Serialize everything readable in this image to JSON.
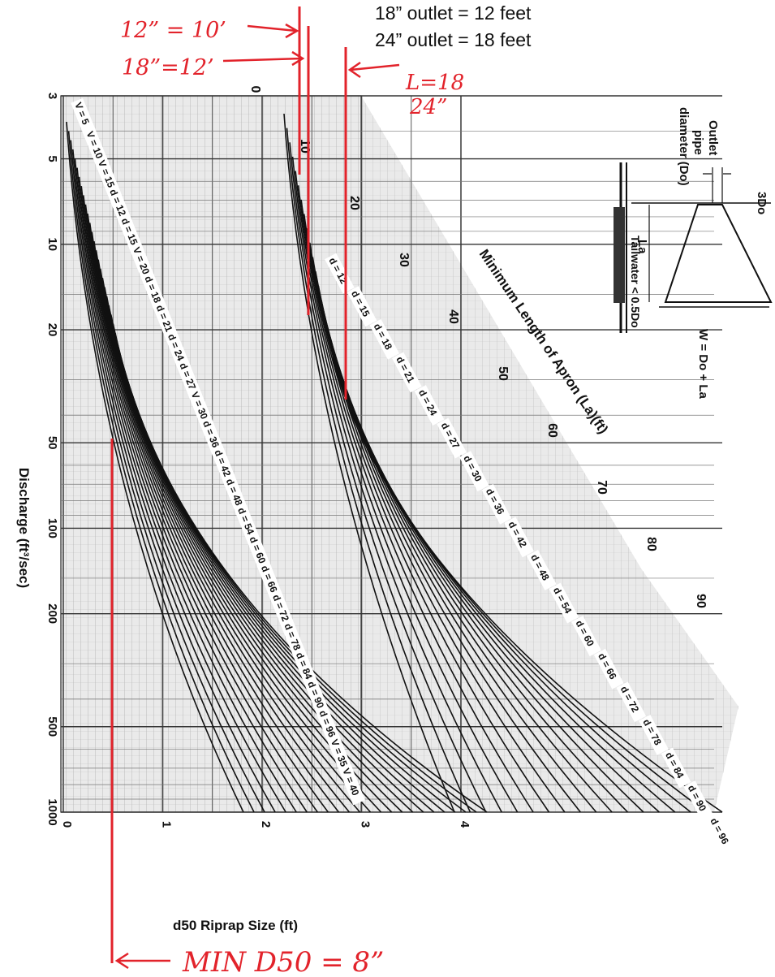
{
  "header": {
    "line1": "18” outlet = 12 feet",
    "line2": "24” outlet = 18 feet"
  },
  "annotations": {
    "a12": "12” = 10’",
    "a18": "18”=12’",
    "aL18": "L=18",
    "a24": "24”",
    "minD50": "MIN D50 = 8”"
  },
  "chart_data": {
    "type": "line",
    "xlabel": "d50 Riprap Size (ft)",
    "ylabel": "Discharge (ft³/sec)",
    "apron_axis_label": "Minimum Length of Apron (La)(ft)",
    "x_ticks": [
      "0",
      "1",
      "2",
      "3",
      "4"
    ],
    "y_ticks": [
      "3",
      "5",
      "10",
      "20",
      "50",
      "100",
      "200",
      "500",
      "1000"
    ],
    "apron_ticks": [
      "0",
      "10",
      "20",
      "30",
      "40",
      "50",
      "60",
      "70",
      "80",
      "90"
    ],
    "curve_labels_d50": [
      "V = 5",
      "V = 10",
      "V = 15",
      "d = 12",
      "d = 15",
      "V = 20",
      "d = 18",
      "d = 21",
      "d = 24",
      "d = 27",
      "V = 30",
      "d = 36",
      "d = 42",
      "d = 48",
      "d = 54",
      "d = 60",
      "d = 66",
      "d = 72",
      "d = 78",
      "d = 84",
      "d = 90",
      "d = 96",
      "V = 35",
      "V = 40"
    ],
    "curve_labels_apron": [
      "d = 12",
      "d = 15",
      "d = 18",
      "d = 21",
      "d = 24",
      "d = 27",
      "d = 30",
      "d = 36",
      "d = 42",
      "d = 48",
      "d = 54",
      "d = 60",
      "d = 66",
      "d = 72",
      "d = 78",
      "d = 84",
      "d = 90",
      "d = 96"
    ],
    "markers": {
      "min_d50_ft": 0.67,
      "apron_lengths_ft": [
        10,
        12,
        18
      ]
    }
  },
  "inset": {
    "outlet_label": "Outlet",
    "pipe_label": "pipe",
    "diameter_label": "diameter (Do)",
    "top_width_label": "3Do",
    "length_label": "La",
    "tailwater_label": "Tailwater < 0.5Do",
    "width_label": "W = Do + La"
  },
  "colors": {
    "annotation_red": "#e2232b",
    "ink": "#111111",
    "grid": "#555555",
    "shade": "#c8c8c8"
  }
}
